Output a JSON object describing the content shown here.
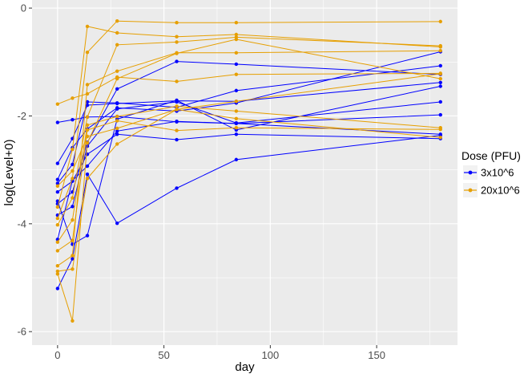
{
  "chart_data": {
    "type": "line",
    "xlabel": "day",
    "ylabel": "log(Level+0)",
    "xlim": [
      -12,
      188
    ],
    "ylim": [
      -6.25,
      0.15
    ],
    "xticks": [
      0,
      50,
      100,
      150
    ],
    "xtick_labels": [
      "0",
      "50",
      "100",
      "150"
    ],
    "yticks": [
      0,
      -2,
      -4,
      -6
    ],
    "ytick_labels": [
      "0",
      "-2",
      "-4",
      "-6"
    ],
    "grid": true,
    "legend": {
      "title": "Dose (PFU)",
      "position": "right",
      "entries": [
        "3x10^6",
        "20x10^6"
      ]
    },
    "series": [
      {
        "name": "3x10^6",
        "color": "#0000ff",
        "subjects": [
          {
            "x": [
              0,
              7,
              14,
              28,
              56,
              84,
              180
            ],
            "y": [
              -2.12,
              -2.07,
              -2.02,
              -2.01,
              -2.11,
              -2.14,
              -1.98
            ]
          },
          {
            "x": [
              0,
              7,
              14,
              28,
              56,
              84,
              180
            ],
            "y": [
              -2.88,
              -2.42,
              -1.8,
              -1.77,
              -1.72,
              -1.73,
              -1.38
            ]
          },
          {
            "x": [
              0,
              7,
              14,
              28,
              56,
              84,
              180
            ],
            "y": [
              -3.18,
              -2.59,
              -2.24,
              -1.85,
              -1.91,
              -1.76,
              -0.81
            ]
          },
          {
            "x": [
              0,
              7,
              14,
              28,
              56,
              84,
              180
            ],
            "y": [
              -3.25,
              -2.9,
              -1.74,
              -1.76,
              -1.84,
              -1.53,
              -1.07
            ]
          },
          {
            "x": [
              0,
              7,
              14,
              28,
              56,
              84,
              180
            ],
            "y": [
              -3.41,
              -3.21,
              -2.71,
              -2.34,
              -2.44,
              -2.34,
              -2.42
            ]
          },
          {
            "x": [
              0,
              7,
              14,
              28,
              56,
              84,
              180
            ],
            "y": [
              -3.63,
              -3.41,
              -2.49,
              -1.5,
              -0.99,
              -1.04,
              -1.23
            ]
          },
          {
            "x": [
              0,
              7,
              14,
              28,
              56,
              84,
              180
            ],
            "y": [
              -3.84,
              -3.68,
              -2.56,
              -1.87,
              -1.74,
              -2.13,
              -1.74
            ]
          },
          {
            "x": [
              0,
              7,
              14,
              28,
              56,
              84,
              180
            ],
            "y": [
              -4.29,
              -3.2,
              -2.93,
              -2.28,
              -2.1,
              -2.14,
              -2.34
            ]
          },
          {
            "x": [
              0,
              7,
              14,
              28,
              56,
              84,
              180
            ],
            "y": [
              -5.2,
              -4.65,
              -3.08,
              -3.99,
              -3.34,
              -2.81,
              -2.36
            ]
          },
          {
            "x": [
              0,
              7,
              14,
              28,
              56,
              84,
              180
            ],
            "y": [
              -3.58,
              -4.38,
              -4.22,
              -2.06,
              -1.71,
              -2.26,
              -1.45
            ]
          }
        ]
      },
      {
        "name": "20x10^6",
        "color": "#e69f00",
        "subjects": [
          {
            "x": [
              0,
              7,
              14,
              28,
              56,
              84,
              180
            ],
            "y": [
              -1.78,
              -1.67,
              -1.59,
              -1.28,
              -1.36,
              -1.23,
              -1.21
            ]
          },
          {
            "x": [
              0,
              7,
              14,
              28,
              56,
              84,
              180
            ],
            "y": [
              -3.69,
              -2.62,
              -0.34,
              -0.46,
              -0.53,
              -0.49,
              -0.72
            ]
          },
          {
            "x": [
              0,
              7,
              14,
              28,
              56,
              84,
              180
            ],
            "y": [
              -3.9,
              -3.16,
              -0.82,
              -0.24,
              -0.27,
              -0.27,
              -0.25
            ]
          },
          {
            "x": [
              0,
              7,
              14,
              28,
              56,
              84,
              180
            ],
            "y": [
              -4.02,
              -3.52,
              -2.02,
              -0.68,
              -0.63,
              -0.54,
              -0.7
            ]
          },
          {
            "x": [
              0,
              7,
              14,
              28,
              56,
              84,
              180
            ],
            "y": [
              -4.34,
              -3.93,
              -2.17,
              -2.01,
              -1.82,
              -1.91,
              -2.22
            ]
          },
          {
            "x": [
              0,
              7,
              14,
              28,
              56,
              84,
              180
            ],
            "y": [
              -4.5,
              -4.31,
              -2.26,
              -2.09,
              -2.27,
              -2.22,
              -2.25
            ]
          },
          {
            "x": [
              0,
              7,
              14,
              28,
              56,
              84,
              180
            ],
            "y": [
              -4.78,
              -4.59,
              -1.42,
              -1.17,
              -0.83,
              -0.83,
              -0.79
            ]
          },
          {
            "x": [
              0,
              7,
              14,
              28,
              56,
              84,
              180
            ],
            "y": [
              -4.88,
              -4.84,
              -3.16,
              -2.52,
              -1.88,
              -1.73,
              -1.22
            ]
          },
          {
            "x": [
              0,
              7,
              14,
              28,
              56,
              84,
              180
            ],
            "y": [
              -4.93,
              -5.8,
              -2.5,
              -1.31,
              -0.84,
              -0.58,
              -1.31
            ]
          },
          {
            "x": [
              0,
              7,
              14,
              28,
              56,
              84,
              180
            ],
            "y": [
              -3.3,
              -3.02,
              -2.38,
              -2.23,
              -1.88,
              -2.05,
              -2.4
            ]
          }
        ]
      }
    ]
  }
}
